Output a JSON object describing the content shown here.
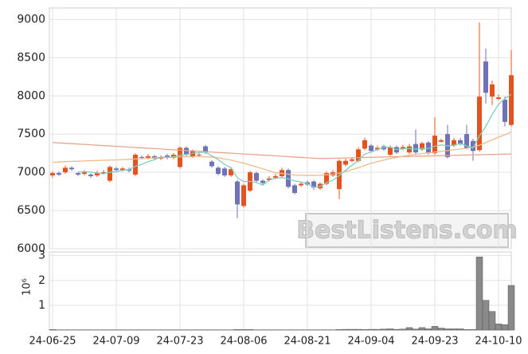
{
  "chart_data": {
    "type": "candlestick",
    "watermark": "BestListens.com",
    "categories": [
      "24-06-25",
      null,
      null,
      null,
      null,
      null,
      null,
      null,
      null,
      null,
      "24-07-09",
      null,
      null,
      null,
      null,
      null,
      null,
      null,
      null,
      null,
      "24-07-23",
      null,
      null,
      null,
      null,
      null,
      null,
      null,
      null,
      null,
      "24-08-06",
      null,
      null,
      null,
      null,
      null,
      null,
      null,
      null,
      null,
      "24-08-21",
      null,
      null,
      null,
      null,
      null,
      null,
      null,
      null,
      null,
      "24-09-04",
      null,
      null,
      null,
      null,
      null,
      null,
      null,
      null,
      null,
      "24-09-23",
      null,
      null,
      null,
      null,
      null,
      null,
      null,
      null,
      null,
      "24-10-10",
      null,
      null
    ],
    "open": [
      6960,
      6990,
      7000,
      7060,
      6990,
      6980,
      6970,
      6960,
      6990,
      6890,
      7050,
      7030,
      7040,
      6970,
      7200,
      7190,
      7210,
      7180,
      7220,
      7190,
      7070,
      7320,
      7210,
      7230,
      7340,
      7140,
      7060,
      7050,
      6960,
      6880,
      6560,
      6760,
      6990,
      6890,
      6900,
      6930,
      6950,
      7030,
      6830,
      6830,
      6870,
      6880,
      6790,
      6850,
      6960,
      6780,
      7100,
      7150,
      7150,
      7310,
      7350,
      7300,
      7340,
      7230,
      7330,
      7310,
      7260,
      7370,
      7300,
      7390,
      7250,
      7400,
      7500,
      7350,
      7420,
      7500,
      7410,
      7290,
      8450,
      7990,
      7960,
      7950,
      7620
    ],
    "high": [
      7010,
      7010,
      7090,
      7080,
      7000,
      7030,
      6990,
      7020,
      7030,
      7090,
      7070,
      7070,
      7060,
      7250,
      7220,
      7240,
      7230,
      7220,
      7240,
      7250,
      7340,
      7340,
      7300,
      7260,
      7360,
      7160,
      7080,
      7070,
      7060,
      6900,
      6850,
      7020,
      7010,
      6910,
      6950,
      6980,
      7060,
      7050,
      6850,
      6870,
      6890,
      6900,
      6870,
      7010,
      7030,
      7170,
      7180,
      7200,
      7330,
      7450,
      7370,
      7350,
      7360,
      7350,
      7350,
      7360,
      7370,
      7560,
      7400,
      7410,
      7720,
      7440,
      7620,
      7450,
      7450,
      7620,
      7440,
      8960,
      8620,
      8200,
      8020,
      7990,
      8600
    ],
    "low": [
      6930,
      6950,
      6980,
      7020,
      6950,
      6960,
      6930,
      6940,
      6970,
      6870,
      7010,
      7010,
      7000,
      6950,
      7170,
      7170,
      7160,
      7160,
      7170,
      7170,
      7050,
      7210,
      7190,
      7210,
      7240,
      7060,
      6960,
      6940,
      6940,
      6400,
      6540,
      6740,
      6870,
      6840,
      6880,
      6910,
      6930,
      6790,
      6710,
      6810,
      6820,
      6770,
      6770,
      6830,
      6940,
      6650,
      7080,
      7130,
      7130,
      7290,
      7260,
      7280,
      7280,
      7210,
      7240,
      7290,
      7240,
      7240,
      7280,
      7230,
      7230,
      7390,
      7180,
      7330,
      7350,
      7300,
      7150,
      7270,
      7900,
      7880,
      7940,
      7600,
      7600
    ],
    "close": [
      6990,
      6970,
      7060,
      7040,
      6970,
      7000,
      6950,
      6990,
      7000,
      7070,
      7030,
      7050,
      7020,
      7230,
      7190,
      7210,
      7180,
      7200,
      7190,
      7230,
      7320,
      7230,
      7280,
      7230,
      7260,
      7080,
      6980,
      6960,
      7040,
      6580,
      6830,
      7000,
      6890,
      6860,
      6920,
      6950,
      7030,
      6810,
      6730,
      6850,
      6840,
      6800,
      6850,
      6990,
      7000,
      7150,
      7150,
      7170,
      7300,
      7420,
      7280,
      7320,
      7300,
      7330,
      7260,
      7330,
      7340,
      7260,
      7380,
      7250,
      7480,
      7420,
      7200,
      7420,
      7370,
      7320,
      7280,
      7990,
      8040,
      8150,
      7980,
      7660,
      8270
    ],
    "up_color": "#e4531e",
    "down_color": "#6e72b6",
    "lines": [
      {
        "color": "#e9a48e",
        "values": [
          7390,
          7385,
          7380,
          7375,
          7370,
          7365,
          7360,
          7355,
          7350,
          7345,
          7340,
          7335,
          7330,
          7325,
          7320,
          7315,
          7310,
          7305,
          7300,
          7295,
          7290,
          7285,
          7280,
          7275,
          7270,
          7265,
          7260,
          7255,
          7250,
          7245,
          7240,
          7235,
          7230,
          7225,
          7220,
          7215,
          7210,
          7205,
          7200,
          7195,
          7190,
          7185,
          7180,
          7182,
          7184,
          7186,
          7188,
          7190,
          7192,
          7194,
          7196,
          7198,
          7200,
          7202,
          7204,
          7206,
          7208,
          7210,
          7212,
          7214,
          7216,
          7218,
          7220,
          7222,
          7224,
          7226,
          7228,
          7230,
          7232,
          7234,
          7236,
          7238,
          7240
        ]
      },
      {
        "color": "#f2b98a",
        "values": [
          7130,
          7135,
          7140,
          7143,
          7146,
          7149,
          7152,
          7155,
          7158,
          7160,
          7162,
          7166,
          7170,
          7175,
          7180,
          7185,
          7190,
          7194,
          7197,
          7200,
          7202,
          7204,
          7205,
          7205,
          7203,
          7200,
          7190,
          7175,
          7160,
          7140,
          7120,
          7095,
          7070,
          7045,
          7020,
          6995,
          6985,
          6975,
          6965,
          6962,
          6960,
          6960,
          6962,
          6968,
          6975,
          6990,
          7010,
          7035,
          7060,
          7090,
          7120,
          7140,
          7160,
          7180,
          7195,
          7210,
          7225,
          7235,
          7245,
          7255,
          7265,
          7275,
          7285,
          7295,
          7305,
          7315,
          7330,
          7355,
          7390,
          7425,
          7460,
          7490,
          7530
        ]
      },
      {
        "color": "#7fcfbe",
        "values": [
          null,
          null,
          null,
          null,
          7006,
          7008,
          7004,
          6990,
          6982,
          7002,
          7008,
          7028,
          7034,
          7080,
          7104,
          7140,
          7166,
          7202,
          7194,
          7202,
          7224,
          7234,
          7250,
          7258,
          7264,
          7216,
          7166,
          7102,
          7064,
          6928,
          6878,
          6882,
          6868,
          6832,
          6900,
          6924,
          6930,
          6914,
          6888,
          6874,
          6852,
          6806,
          6814,
          6866,
          6896,
          6958,
          7028,
          7092,
          7154,
          7238,
          7264,
          7298,
          7324,
          7330,
          7298,
          7308,
          7312,
          7304,
          7314,
          7312,
          7342,
          7358,
          7346,
          7354,
          7378,
          7346,
          7318,
          7476,
          7600,
          7756,
          7888,
          7964,
          8020
        ]
      }
    ],
    "ylim": [
      6000,
      9150
    ],
    "yticks": [
      6000,
      6500,
      7000,
      7500,
      8000,
      8500,
      9000
    ],
    "grid": true,
    "volume": {
      "label": "10⁶",
      "color": "#8a8a8a",
      "ylim": [
        0,
        3.15
      ],
      "yticks": [
        1,
        2,
        3
      ],
      "values": [
        0.02,
        0.01,
        0.01,
        0.01,
        0.01,
        0.01,
        0.01,
        0.01,
        0.01,
        0.01,
        0.01,
        0.01,
        0.01,
        0.01,
        0.01,
        0.01,
        0.01,
        0.01,
        0.01,
        0.01,
        0.01,
        0.01,
        0.01,
        0.01,
        0.01,
        0.01,
        0.01,
        0.01,
        0.01,
        0.02,
        0.02,
        0.02,
        0.01,
        0.01,
        0.01,
        0.01,
        0.01,
        0.01,
        0.01,
        0.01,
        0.01,
        0.01,
        0.01,
        0.01,
        0.01,
        0.02,
        0.03,
        0.03,
        0.03,
        0.02,
        0.03,
        0.03,
        0.04,
        0.05,
        0.03,
        0.04,
        0.1,
        0.04,
        0.1,
        0.05,
        0.15,
        0.08,
        0.05,
        0.05,
        0.05,
        0.02,
        0.02,
        2.95,
        1.2,
        0.75,
        0.25,
        0.22,
        1.8
      ]
    }
  }
}
